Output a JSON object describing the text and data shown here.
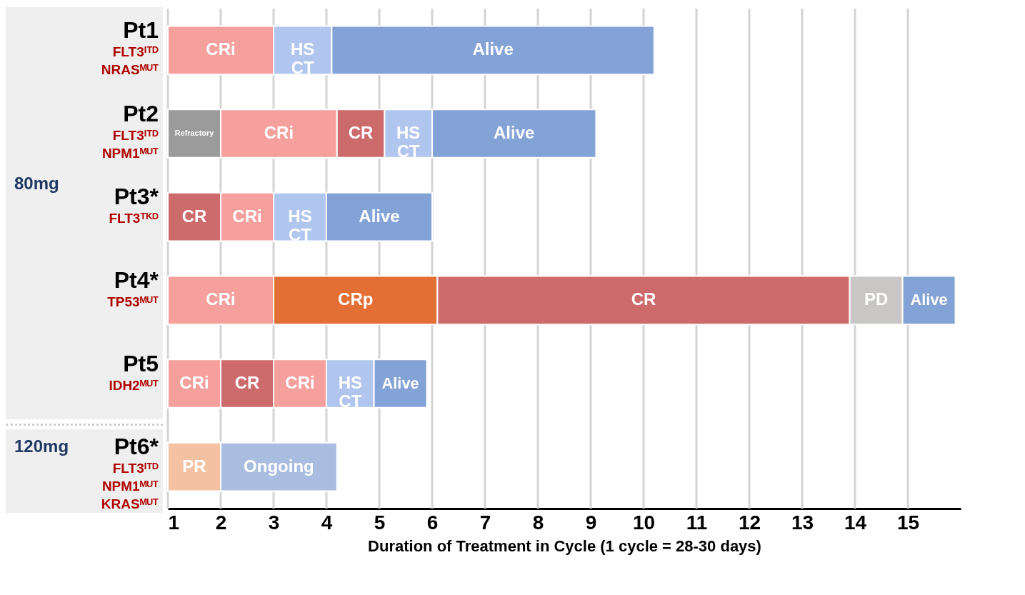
{
  "chart_data": {
    "type": "bar",
    "orientation": "horizontal",
    "categories": [
      "Pt1\nFLT3ᴵᵀᴰ\nNRASᴹᵁᵀ",
      "Pt2\nFLT3ᴵᵀᴰ\nNPM1ᴹᵁᵀ",
      "Pt3*\nFLT3ᵀᴷᴰ",
      "Pt4*\nTP53ᴹᵁᵀ",
      "Pt5\nIDH2ᴹᵁᵀ",
      "Pt6*\nFLT3ᴵᵀᴰ\nNPM1ᴹᵁᵀ\nKRASᴹᵁᵀ"
    ],
    "series": [
      {
        "base": [
          1,
          1,
          1,
          1,
          1,
          1
        ],
        "values": [
          2.0,
          1.0,
          1.0,
          2.0,
          1.0,
          1.0
        ],
        "colors": [
          "#f6a09d",
          "#9b9b9b",
          "#cd6a6b",
          "#f6a09d",
          "#f6a09d",
          "#f4c2a2"
        ],
        "value_labels": [
          "CRi",
          "Refractory",
          "CR",
          "CRi",
          "CRi",
          "PR"
        ]
      },
      {
        "base": [
          3.0,
          2.0,
          2.0,
          3.0,
          2.0,
          2.0
        ],
        "values": [
          1.1,
          2.2,
          1.0,
          3.1,
          1.0,
          2.2
        ],
        "colors": [
          "#b0c6ee",
          "#f6a09d",
          "#f6a09d",
          "#e46f34",
          "#cd6a6b",
          "#a9bde0"
        ],
        "value_labels": [
          "HS\nCT",
          "CRi",
          "CRi",
          "CRp",
          "CR",
          "Ongoing"
        ]
      },
      {
        "base": [
          4.1,
          4.2,
          3.0,
          6.1,
          3.0,
          null
        ],
        "values": [
          6.1,
          0.9,
          1.0,
          7.8,
          1.0,
          null
        ],
        "colors": [
          "#83a2d5",
          "#cd6a6b",
          "#b0c6ee",
          "#cd6a6b",
          "#f6a09d",
          null
        ],
        "value_labels": [
          "Alive",
          "CR",
          "HS\nCT",
          "CR",
          "CRi",
          null
        ]
      },
      {
        "base": [
          null,
          5.1,
          4.0,
          13.9,
          4.0,
          null
        ],
        "values": [
          null,
          0.9,
          2.0,
          1.0,
          0.9,
          null
        ],
        "colors": [
          null,
          "#b0c6ee",
          "#83a2d5",
          "#c8c7c5",
          "#b0c6ee",
          null
        ],
        "value_labels": [
          null,
          "HS\nCT",
          "Alive",
          "PD",
          "HS\nCT",
          null
        ]
      },
      {
        "base": [
          null,
          6.0,
          null,
          14.9,
          4.9,
          null
        ],
        "values": [
          null,
          3.1,
          null,
          1.0,
          1.0,
          null
        ],
        "colors": [
          null,
          "#83a2d5",
          null,
          "#83a2d5",
          "#83a2d5",
          null
        ],
        "value_labels": [
          null,
          "Alive",
          null,
          "Alive",
          "Alive",
          null
        ]
      }
    ],
    "xlim": [
      1,
      16
    ],
    "xticks": [
      1,
      2,
      3,
      4,
      5,
      6,
      7,
      8,
      9,
      10,
      11,
      12,
      13,
      14,
      15
    ],
    "xlabel": "Duration of Treatment in Cycle (1 cycle = 28-30 days)",
    "grid": "x",
    "annotations": [
      "80mg",
      "120mg"
    ]
  }
}
